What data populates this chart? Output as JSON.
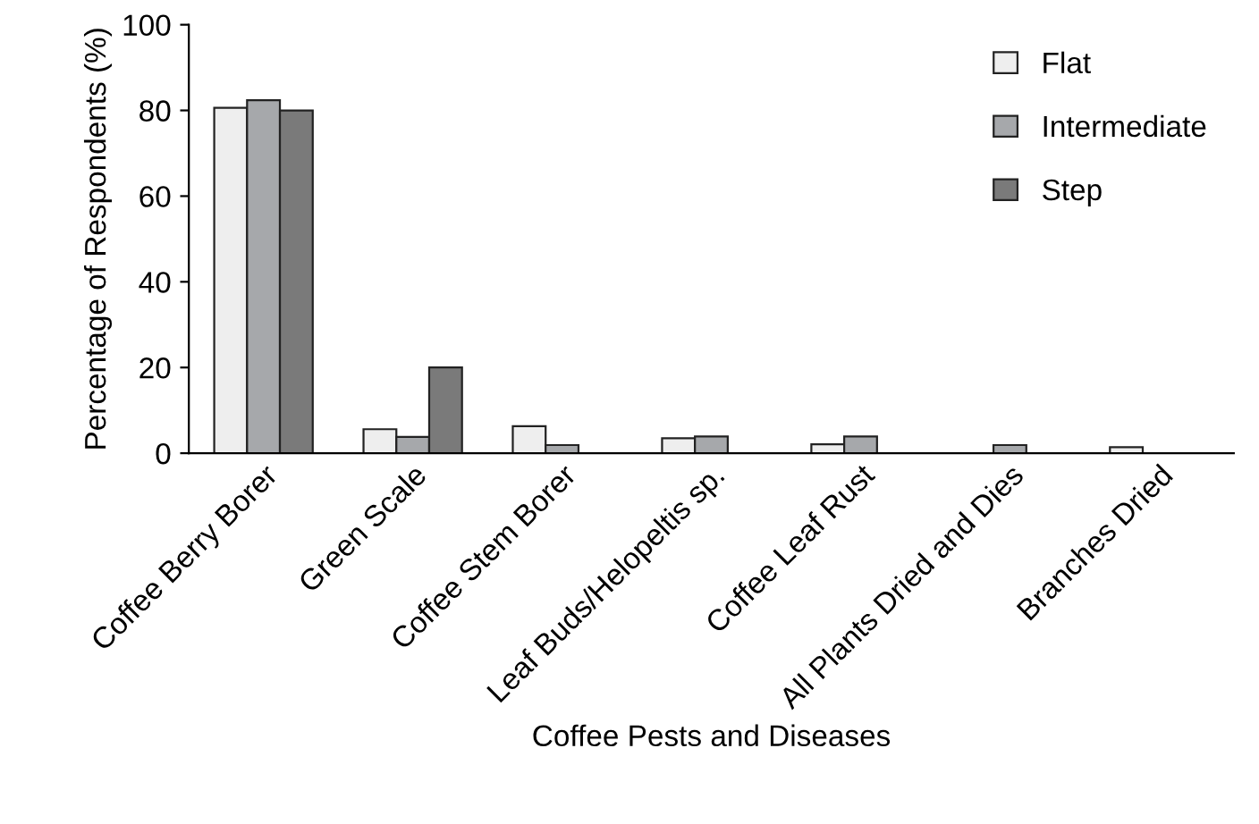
{
  "chart_data": {
    "type": "bar",
    "xlabel": "Coffee Pests and Diseases",
    "ylabel": "Percentage of Respondents (%)",
    "categories": [
      "Coffee Berry Borer",
      "Green Scale",
      "Coffee Stem Borer",
      "Leaf Buds/Helopeltis sp.",
      "Coffee Leaf Rust",
      "All Plants Dried and Dies",
      "Branches Dried"
    ],
    "series": [
      {
        "name": "Flat",
        "color": "#eeeeee",
        "values": [
          80.6,
          5.6,
          6.3,
          3.5,
          2.1,
          null,
          1.4
        ]
      },
      {
        "name": "Intermediate",
        "color": "#a6a8ab",
        "values": [
          82.4,
          3.8,
          1.9,
          3.9,
          3.9,
          1.9,
          null
        ]
      },
      {
        "name": "Step",
        "color": "#7a7a7a",
        "values": [
          80,
          20,
          null,
          null,
          null,
          null,
          null
        ]
      }
    ],
    "ylim": [
      0,
      100
    ],
    "yticks": [
      0,
      20,
      40,
      60,
      80,
      100
    ],
    "grid": false,
    "legend": "top right"
  }
}
